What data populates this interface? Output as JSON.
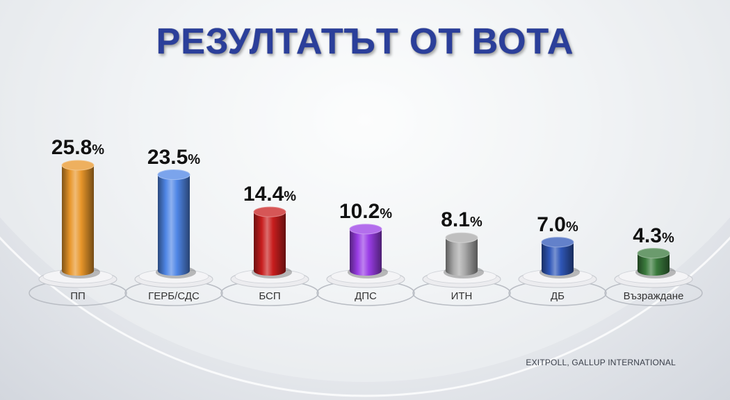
{
  "title": "РЕЗУЛТАТЪТ ОТ ВОТА",
  "source": "EXITPOLL, GALLUP INTERNATIONAL",
  "chart_data": {
    "type": "bar",
    "title": "РЕЗУЛТАТЪТ ОТ ВОТА",
    "categories": [
      "ПП",
      "ГЕРБ/СДС",
      "БСП",
      "ДПС",
      "ИТН",
      "ДБ",
      "Възраждане"
    ],
    "values": [
      25.8,
      23.5,
      14.4,
      10.2,
      8.1,
      7.0,
      4.3
    ],
    "value_labels": [
      "25.8",
      "23.5",
      "14.4",
      "10.2",
      "8.1",
      "7.0",
      "4.3"
    ],
    "unit": "%",
    "colors": [
      "#e8962a",
      "#4f86e6",
      "#c81e1e",
      "#9a3de6",
      "#a9a9a9",
      "#2f57b8",
      "#3a7a3c"
    ],
    "xlabel": "",
    "ylabel": "",
    "grid": false,
    "legend": "none"
  }
}
